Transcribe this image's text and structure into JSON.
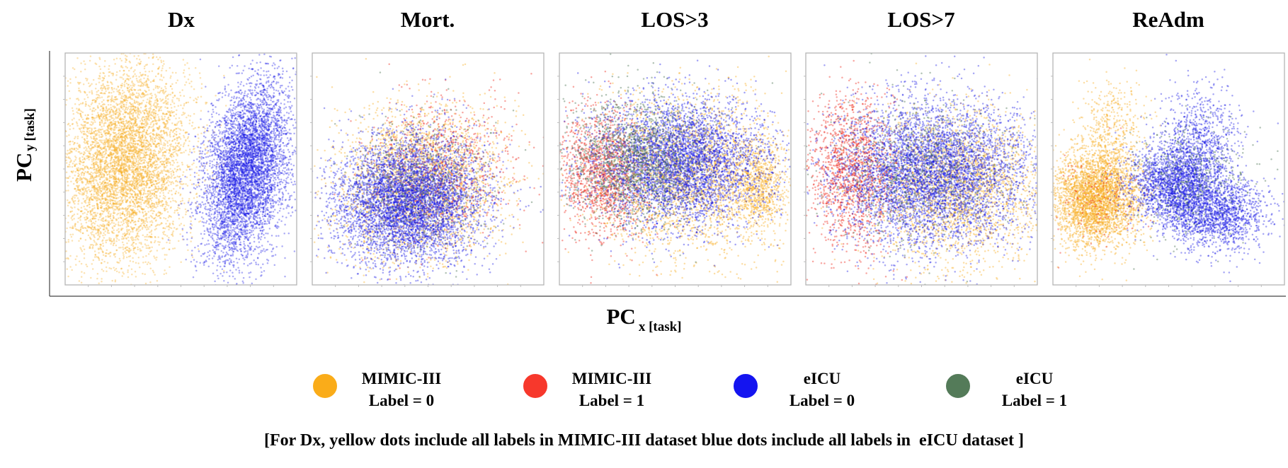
{
  "axes": {
    "x_label_main": "PC",
    "x_label_sub": "x [task]",
    "y_label_main": "PC",
    "y_label_sub": "y  [task]"
  },
  "legend": [
    {
      "line1": "MIMIC-III",
      "line2": "Label = 0",
      "color": "#F7AC20"
    },
    {
      "line1": "MIMIC-III",
      "line2": "Label = 1",
      "color": "#F03A2E"
    },
    {
      "line1": "eICU",
      "line2": "Label = 0",
      "color": "#1515E6"
    },
    {
      "line1": "eICU",
      "line2": "Label = 1",
      "color": "#557A5A"
    }
  ],
  "footnote": "[For Dx, yellow dots include all labels in MIMIC-III dataset blue dots include all labels in  eICU dataset ]",
  "chart_data": [
    {
      "type": "scatter",
      "title": "Dx",
      "xlabel": "PC x [task]",
      "ylabel": "PC y [task]",
      "xlim": [
        0,
        10
      ],
      "ylim": [
        0,
        10
      ],
      "grid": false,
      "tick_labels": false,
      "series": [
        {
          "name": "MIMIC-III (all labels)",
          "color": "#F7AC20",
          "opacity": 0.35,
          "clusters": [
            {
              "cx": 2.6,
              "cy": 5.3,
              "sx": 1.35,
              "sy": 2.1,
              "rho": 0.12,
              "n": 5600
            }
          ]
        },
        {
          "name": "eICU (all labels)",
          "color": "#1515E6",
          "opacity": 0.35,
          "clusters": [
            {
              "cx": 7.8,
              "cy": 4.9,
              "sx": 0.95,
              "sy": 1.9,
              "rho": 0.35,
              "n": 5400
            }
          ]
        }
      ]
    },
    {
      "type": "scatter",
      "title": "Mort.",
      "xlim": [
        0,
        10
      ],
      "ylim": [
        0,
        10
      ],
      "grid": false,
      "tick_labels": false,
      "series": [
        {
          "name": "MIMIC-III Label = 0",
          "color": "#F7AC20",
          "opacity": 0.4,
          "clusters": [
            {
              "cx": 4.6,
              "cy": 4.4,
              "sx": 1.8,
              "sy": 1.6,
              "rho": 0.05,
              "n": 2600
            }
          ]
        },
        {
          "name": "MIMIC-III Label = 1",
          "color": "#F03A2E",
          "opacity": 0.45,
          "clusters": [
            {
              "cx": 5.6,
              "cy": 5.2,
              "sx": 1.6,
              "sy": 1.6,
              "rho": 0.0,
              "n": 700
            }
          ]
        },
        {
          "name": "eICU Label = 0",
          "color": "#1515E6",
          "opacity": 0.38,
          "clusters": [
            {
              "cx": 4.2,
              "cy": 3.6,
              "sx": 1.55,
              "sy": 1.35,
              "rho": 0.05,
              "n": 5400
            }
          ]
        },
        {
          "name": "eICU Label = 1",
          "color": "#557A5A",
          "opacity": 0.45,
          "clusters": [
            {
              "cx": 4.8,
              "cy": 4.4,
              "sx": 1.5,
              "sy": 1.4,
              "rho": 0.0,
              "n": 500
            }
          ]
        }
      ]
    },
    {
      "type": "scatter",
      "title": "LOS>3",
      "xlim": [
        0,
        10
      ],
      "ylim": [
        0,
        10
      ],
      "grid": false,
      "tick_labels": false,
      "series": [
        {
          "name": "MIMIC-III Label = 0",
          "color": "#F7AC20",
          "opacity": 0.4,
          "clusters": [
            {
              "cx": 5.9,
              "cy": 4.7,
              "sx": 2.1,
              "sy": 1.7,
              "rho": 0.0,
              "n": 2700
            },
            {
              "cx": 8.6,
              "cy": 4.2,
              "sx": 0.5,
              "sy": 0.9,
              "rho": 0.0,
              "n": 600
            }
          ]
        },
        {
          "name": "MIMIC-III Label = 1",
          "color": "#F03A2E",
          "opacity": 0.45,
          "clusters": [
            {
              "cx": 1.9,
              "cy": 4.8,
              "sx": 1.0,
              "sy": 1.4,
              "rho": 0.0,
              "n": 1400
            }
          ]
        },
        {
          "name": "eICU Label = 0",
          "color": "#1515E6",
          "opacity": 0.4,
          "clusters": [
            {
              "cx": 5.2,
              "cy": 5.3,
              "sx": 1.9,
              "sy": 1.35,
              "rho": 0.0,
              "n": 4200
            }
          ]
        },
        {
          "name": "eICU Label = 1",
          "color": "#557A5A",
          "opacity": 0.45,
          "clusters": [
            {
              "cx": 3.2,
              "cy": 5.4,
              "sx": 1.5,
              "sy": 1.3,
              "rho": 0.0,
              "n": 1600
            }
          ]
        }
      ]
    },
    {
      "type": "scatter",
      "title": "LOS>7",
      "xlim": [
        0,
        10
      ],
      "ylim": [
        0,
        10
      ],
      "grid": false,
      "tick_labels": false,
      "series": [
        {
          "name": "MIMIC-III Label = 0",
          "color": "#F7AC20",
          "opacity": 0.4,
          "clusters": [
            {
              "cx": 6.6,
              "cy": 4.2,
              "sx": 2.0,
              "sy": 1.6,
              "rho": 0.0,
              "n": 2600
            }
          ]
        },
        {
          "name": "MIMIC-III Label = 1",
          "color": "#F03A2E",
          "opacity": 0.45,
          "clusters": [
            {
              "cx": 2.0,
              "cy": 4.9,
              "sx": 0.9,
              "sy": 1.7,
              "rho": 0.0,
              "n": 1500
            }
          ]
        },
        {
          "name": "eICU Label = 0",
          "color": "#1515E6",
          "opacity": 0.38,
          "clusters": [
            {
              "cx": 5.4,
              "cy": 4.8,
              "sx": 2.05,
              "sy": 1.55,
              "rho": 0.0,
              "n": 5200
            }
          ]
        },
        {
          "name": "eICU Label = 1",
          "color": "#557A5A",
          "opacity": 0.45,
          "clusters": [
            {
              "cx": 5.0,
              "cy": 5.0,
              "sx": 1.8,
              "sy": 1.5,
              "rho": 0.0,
              "n": 700
            }
          ]
        }
      ]
    },
    {
      "type": "scatter",
      "title": "ReAdm",
      "xlim": [
        0,
        10
      ],
      "ylim": [
        0,
        10
      ],
      "grid": false,
      "tick_labels": false,
      "series": [
        {
          "name": "MIMIC-III Label = 0",
          "color": "#F7AC20",
          "opacity": 0.4,
          "clusters": [
            {
              "cx": 1.9,
              "cy": 3.8,
              "sx": 0.95,
              "sy": 1.05,
              "rho": 0.0,
              "n": 3400
            },
            {
              "cx": 2.6,
              "cy": 6.9,
              "sx": 0.65,
              "sy": 1.0,
              "rho": 0.0,
              "n": 400
            }
          ]
        },
        {
          "name": "MIMIC-III Label = 1",
          "color": "#F03A2E",
          "opacity": 0.45,
          "clusters": [
            {
              "cx": 2.0,
              "cy": 3.8,
              "sx": 0.9,
              "sy": 1.0,
              "rho": 0.0,
              "n": 120
            }
          ]
        },
        {
          "name": "eICU Label = 0",
          "color": "#1515E6",
          "opacity": 0.38,
          "clusters": [
            {
              "cx": 5.4,
              "cy": 4.3,
              "sx": 1.0,
              "sy": 0.9,
              "rho": 0.0,
              "n": 2400
            },
            {
              "cx": 7.2,
              "cy": 3.0,
              "sx": 1.0,
              "sy": 0.8,
              "rho": 0.1,
              "n": 1400
            },
            {
              "cx": 6.4,
              "cy": 6.4,
              "sx": 0.8,
              "sy": 1.1,
              "rho": 0.0,
              "n": 700
            }
          ]
        },
        {
          "name": "eICU Label = 1",
          "color": "#557A5A",
          "opacity": 0.45,
          "clusters": [
            {
              "cx": 6.0,
              "cy": 4.6,
              "sx": 1.3,
              "sy": 1.2,
              "rho": 0.0,
              "n": 400
            }
          ]
        }
      ]
    }
  ]
}
